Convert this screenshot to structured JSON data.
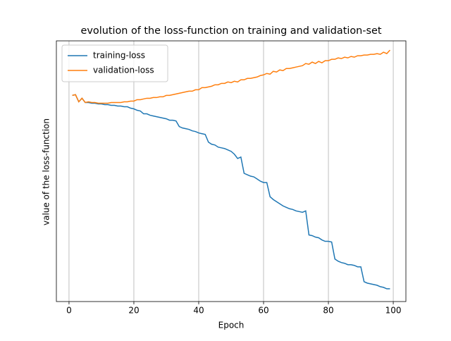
{
  "chart_data": {
    "type": "line",
    "title": "evolution of the loss-function on training and validation-set",
    "x_label": "Epoch",
    "y_label": "value of the loss-function",
    "x": [
      1,
      2,
      3,
      4,
      5,
      6,
      7,
      8,
      9,
      10,
      11,
      12,
      13,
      14,
      15,
      16,
      17,
      18,
      19,
      20,
      21,
      22,
      23,
      24,
      25,
      26,
      27,
      28,
      29,
      30,
      31,
      32,
      33,
      34,
      35,
      36,
      37,
      38,
      39,
      40,
      41,
      42,
      43,
      44,
      45,
      46,
      47,
      48,
      49,
      50,
      51,
      52,
      53,
      54,
      55,
      56,
      57,
      58,
      59,
      60,
      61,
      62,
      63,
      64,
      65,
      66,
      67,
      68,
      69,
      70,
      71,
      72,
      73,
      74,
      75,
      76,
      77,
      78,
      79,
      80,
      81,
      82,
      83,
      84,
      85,
      86,
      87,
      88,
      89,
      90,
      91,
      92,
      93,
      94,
      95,
      96,
      97,
      98,
      99
    ],
    "series": [
      {
        "name": "training-loss",
        "color": "#1f77b4",
        "values": [
          291,
          292,
          282,
          287,
          281,
          281,
          280,
          280,
          279,
          279,
          278,
          278,
          277,
          277,
          276,
          276,
          275,
          275,
          273,
          272,
          270,
          269,
          265,
          265,
          263,
          262,
          261,
          260,
          259,
          258,
          256,
          256,
          255,
          247,
          245,
          244,
          243,
          241,
          240,
          238,
          237,
          236,
          225,
          222,
          221,
          218,
          217,
          216,
          214,
          212,
          208,
          202,
          204,
          181,
          179,
          177,
          176,
          173,
          170,
          168,
          168,
          148,
          144,
          141,
          138,
          135,
          133,
          131,
          130,
          128,
          127,
          126,
          128,
          94,
          93,
          91,
          90,
          87,
          85,
          85,
          84,
          60,
          57,
          55,
          54,
          52,
          52,
          51,
          49,
          49,
          28,
          26,
          25,
          24,
          23,
          21,
          20,
          18,
          18
        ]
      },
      {
        "name": "validation-loss",
        "color": "#ff7f0e",
        "values": [
          291,
          292,
          282,
          287,
          281,
          282,
          281,
          281,
          280,
          280,
          280,
          280,
          281,
          281,
          281,
          281,
          282,
          282,
          283,
          283,
          285,
          285,
          286,
          287,
          287,
          288,
          288,
          289,
          289,
          291,
          291,
          292,
          293,
          294,
          295,
          296,
          297,
          297,
          299,
          299,
          302,
          302,
          303,
          304,
          306,
          306,
          308,
          308,
          310,
          309,
          311,
          310,
          313,
          313,
          315,
          315,
          316,
          317,
          319,
          320,
          322,
          321,
          325,
          324,
          327,
          326,
          329,
          329,
          330,
          331,
          332,
          333,
          336,
          335,
          338,
          336,
          339,
          337,
          340,
          340,
          342,
          342,
          344,
          343,
          345,
          344,
          346,
          345,
          347,
          347,
          348,
          348,
          349,
          349,
          350,
          349,
          352,
          350,
          355
        ]
      }
    ],
    "xlim": [
      -3.9,
      103.9
    ],
    "xticks": [
      0,
      20,
      40,
      60,
      80,
      100
    ],
    "ylim": [
      0,
      368
    ],
    "grid": "x",
    "legend": "upper left"
  }
}
